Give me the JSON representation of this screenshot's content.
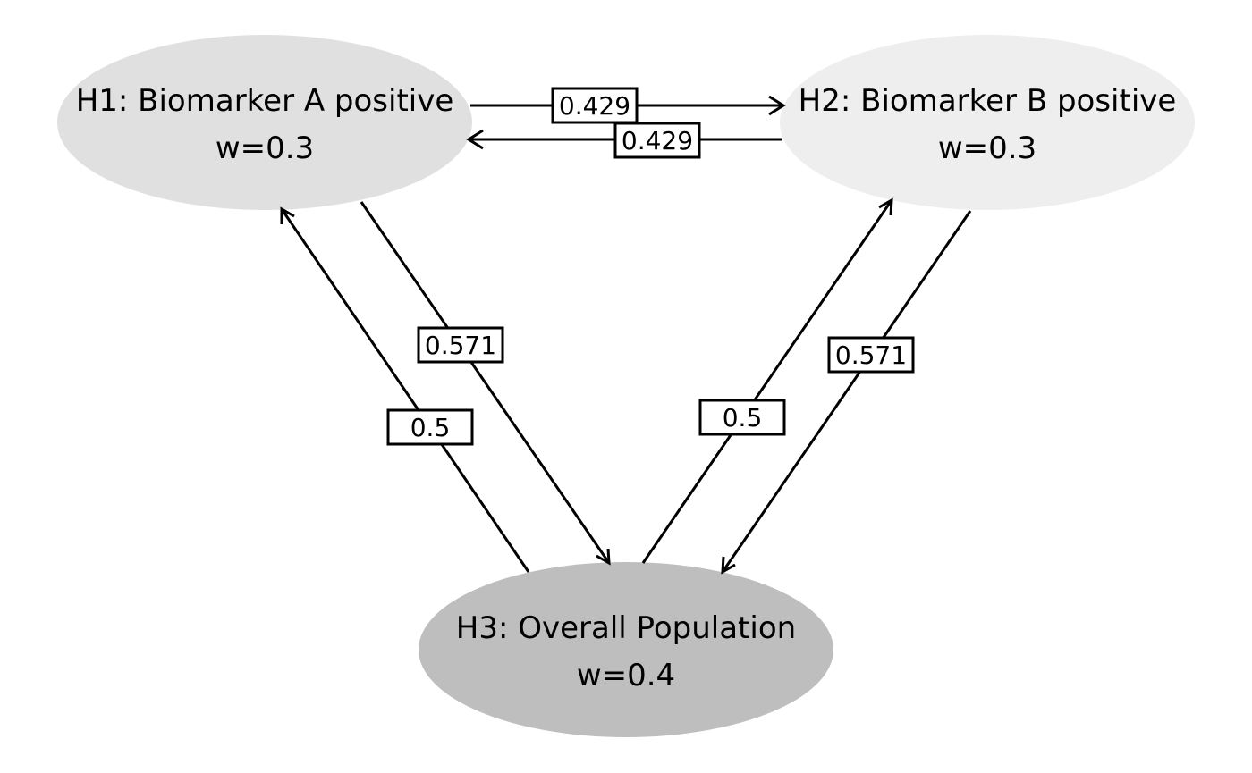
{
  "nodes": {
    "h1": {
      "title": "H1: Biomarker A positive",
      "weight": "w=0.3",
      "fill": "#e0e0e0"
    },
    "h2": {
      "title": "H2: Biomarker B positive",
      "weight": "w=0.3",
      "fill": "#eeeeee"
    },
    "h3": {
      "title": "H3: Overall Population",
      "weight": "w=0.4",
      "fill": "#bebebe"
    }
  },
  "edges": {
    "h1_to_h2": {
      "label": "0.429"
    },
    "h2_to_h1": {
      "label": "0.429"
    },
    "h1_to_h3": {
      "label": "0.571"
    },
    "h3_to_h1": {
      "label": "0.5"
    },
    "h3_to_h2": {
      "label": "0.5"
    },
    "h2_to_h3": {
      "label": "0.571"
    }
  }
}
